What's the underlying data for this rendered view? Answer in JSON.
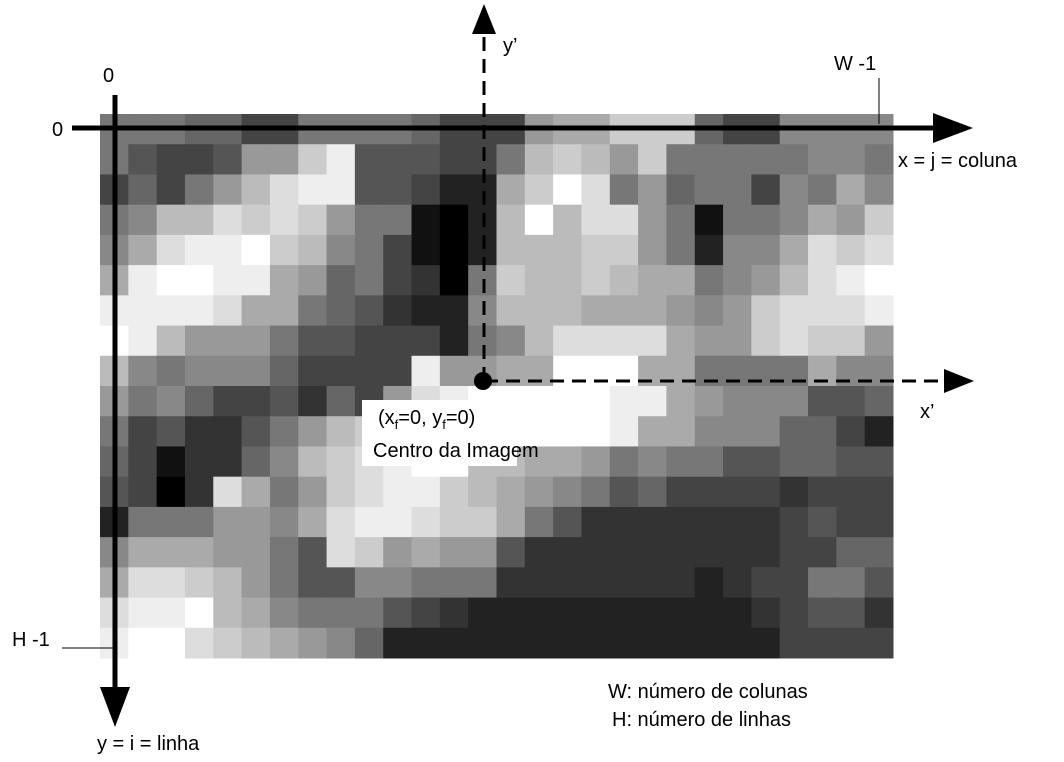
{
  "axes": {
    "origin_col": "0",
    "origin_row": "0",
    "last_col": "W -1",
    "last_row": "H -1",
    "x_axis": "x = j = coluna",
    "y_axis": "y = i = linha",
    "x_prime": "x’",
    "y_prime": "y’"
  },
  "center": {
    "parts": [
      "(x",
      "f",
      "=0, y",
      "f",
      "=0)"
    ],
    "caption": "Centro da Imagem"
  },
  "legend": {
    "w": "W: número de colunas",
    "h": "H: número de linhas"
  }
}
